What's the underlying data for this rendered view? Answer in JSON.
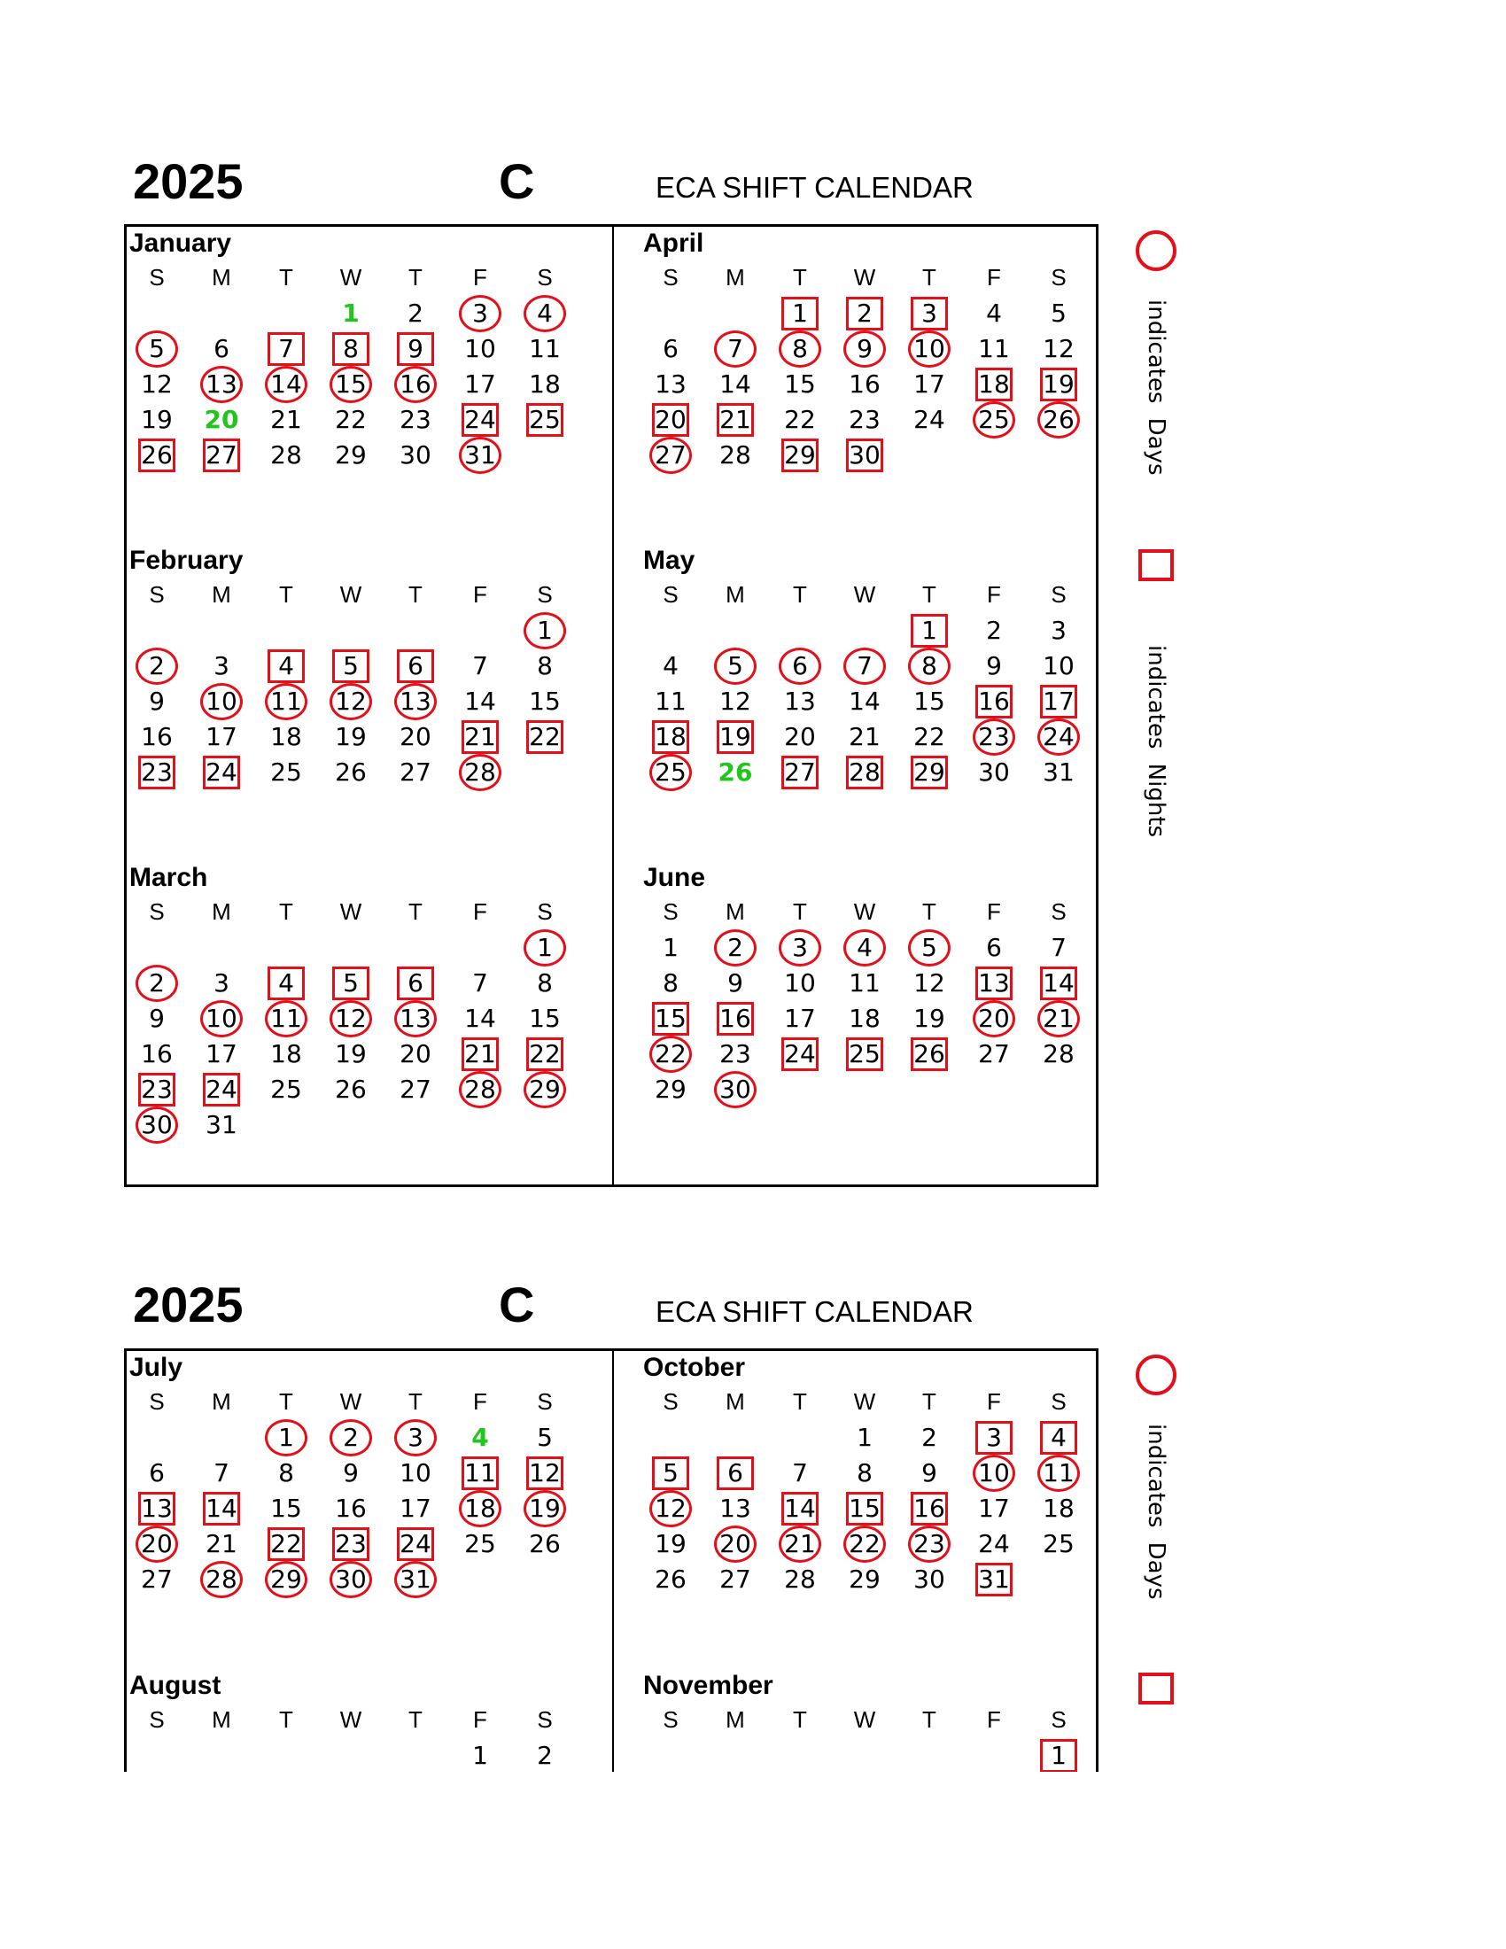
{
  "colors": {
    "mark": "#e3101a",
    "holiday": "#22c41e"
  },
  "legend": {
    "days_label": "indicates  Days",
    "nights_label": "indicates  Nights",
    "circle_icon": "circle-outline-icon",
    "square_icon": "square-outline-icon"
  },
  "weekday_headers": [
    "S",
    "M",
    "T",
    "W",
    "T",
    "F",
    "S"
  ],
  "pages": [
    {
      "year": "2025",
      "letter": "C",
      "title": "ECA SHIFT CALENDAR",
      "months": [
        {
          "name": "January",
          "start": 3,
          "length": 31,
          "days": [
            3,
            4,
            5,
            13,
            14,
            15,
            16,
            31
          ],
          "nights": [
            7,
            8,
            9,
            24,
            25,
            26,
            27
          ],
          "holidays": [
            1,
            20
          ]
        },
        {
          "name": "February",
          "start": 6,
          "length": 28,
          "days": [
            1,
            2,
            10,
            11,
            12,
            13,
            28
          ],
          "nights": [
            4,
            5,
            6,
            21,
            22,
            23,
            24
          ],
          "holidays": []
        },
        {
          "name": "March",
          "start": 6,
          "length": 31,
          "days": [
            1,
            2,
            10,
            11,
            12,
            13,
            28,
            29,
            30
          ],
          "nights": [
            4,
            5,
            6,
            21,
            22,
            23,
            24
          ],
          "holidays": []
        },
        {
          "name": "April",
          "start": 2,
          "length": 30,
          "days": [
            7,
            8,
            9,
            10,
            25,
            26,
            27
          ],
          "nights": [
            1,
            2,
            3,
            18,
            19,
            20,
            21,
            29,
            30
          ],
          "holidays": []
        },
        {
          "name": "May",
          "start": 4,
          "length": 31,
          "days": [
            5,
            6,
            7,
            8,
            23,
            24,
            25
          ],
          "nights": [
            1,
            16,
            17,
            18,
            19,
            27,
            28,
            29
          ],
          "holidays": [
            26
          ]
        },
        {
          "name": "June",
          "start": 0,
          "length": 30,
          "days": [
            2,
            3,
            4,
            5,
            20,
            21,
            22,
            30
          ],
          "nights": [
            13,
            14,
            15,
            16,
            24,
            25,
            26
          ],
          "holidays": []
        }
      ]
    },
    {
      "year": "2025",
      "letter": "C",
      "title": "ECA SHIFT CALENDAR",
      "months": [
        {
          "name": "July",
          "start": 2,
          "length": 31,
          "days": [
            1,
            2,
            3,
            18,
            19,
            20,
            28,
            29,
            30,
            31
          ],
          "nights": [
            11,
            12,
            13,
            14,
            22,
            23,
            24
          ],
          "holidays": [
            4
          ]
        },
        {
          "name": "August",
          "start": 5,
          "length": 2,
          "days": [],
          "nights": [],
          "holidays": []
        },
        {
          "name": "October",
          "start": 3,
          "length": 31,
          "days": [
            10,
            11,
            12,
            20,
            21,
            22,
            23
          ],
          "nights": [
            3,
            4,
            5,
            6,
            14,
            15,
            16,
            31
          ],
          "holidays": []
        },
        {
          "name": "November",
          "start": 6,
          "length": 1,
          "days": [],
          "nights": [
            1
          ],
          "holidays": []
        }
      ]
    }
  ]
}
